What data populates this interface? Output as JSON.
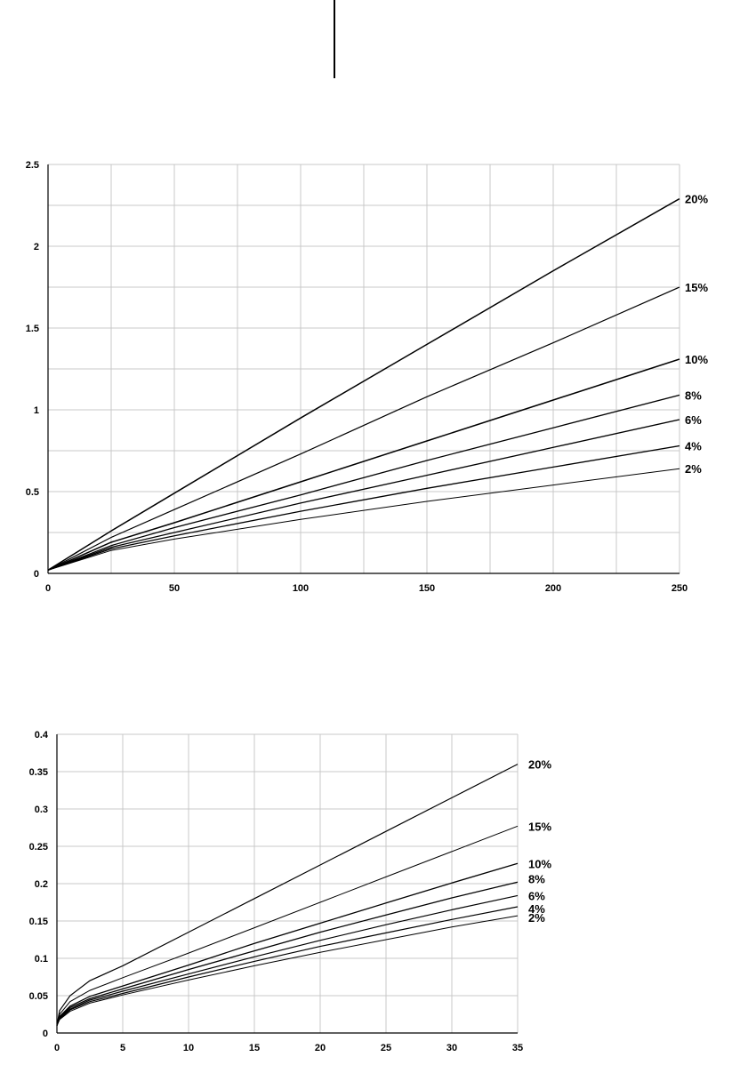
{
  "chart_data": [
    {
      "type": "line",
      "title": "",
      "xlabel": "",
      "ylabel": "",
      "xlim": [
        0,
        250
      ],
      "ylim": [
        0,
        2.5
      ],
      "grid": true,
      "legend": "inline labels at right end of each line",
      "x_ticks": [
        "0",
        "50",
        "100",
        "150",
        "200",
        "250"
      ],
      "y_ticks": [
        "0",
        "0.5",
        "1",
        "1.5",
        "2",
        "2.5"
      ],
      "series": [
        {
          "name": "20%",
          "x": [
            0,
            25,
            50,
            100,
            150,
            200,
            250
          ],
          "values": [
            0.02,
            0.26,
            0.49,
            0.95,
            1.4,
            1.85,
            2.29
          ]
        },
        {
          "name": "15%",
          "x": [
            0,
            25,
            50,
            100,
            150,
            200,
            250
          ],
          "values": [
            0.02,
            0.22,
            0.39,
            0.73,
            1.08,
            1.41,
            1.75
          ]
        },
        {
          "name": "10%",
          "x": [
            0,
            25,
            50,
            100,
            150,
            200,
            250
          ],
          "values": [
            0.02,
            0.19,
            0.31,
            0.56,
            0.81,
            1.06,
            1.31
          ]
        },
        {
          "name": "8%",
          "x": [
            0,
            25,
            50,
            100,
            150,
            200,
            250
          ],
          "values": [
            0.02,
            0.17,
            0.28,
            0.48,
            0.69,
            0.89,
            1.09
          ]
        },
        {
          "name": "6%",
          "x": [
            0,
            25,
            50,
            100,
            150,
            200,
            250
          ],
          "values": [
            0.02,
            0.16,
            0.25,
            0.43,
            0.6,
            0.77,
            0.94
          ]
        },
        {
          "name": "4%",
          "x": [
            0,
            25,
            50,
            100,
            150,
            200,
            250
          ],
          "values": [
            0.02,
            0.15,
            0.23,
            0.38,
            0.52,
            0.65,
            0.78
          ]
        },
        {
          "name": "2%",
          "x": [
            0,
            25,
            50,
            100,
            150,
            200,
            250
          ],
          "values": [
            0.02,
            0.14,
            0.21,
            0.33,
            0.44,
            0.54,
            0.64
          ]
        }
      ]
    },
    {
      "type": "line",
      "title": "",
      "xlabel": "",
      "ylabel": "",
      "xlim": [
        0,
        35
      ],
      "ylim": [
        0,
        0.4
      ],
      "grid": true,
      "legend": "inline labels at right end of each line",
      "x_ticks": [
        "0",
        "5",
        "10",
        "15",
        "20",
        "25",
        "30",
        "35"
      ],
      "y_ticks": [
        "0",
        "0.05",
        "0.1",
        "0.15",
        "0.2",
        "0.25",
        "0.3",
        "0.35",
        "0.4"
      ],
      "series": [
        {
          "name": "20%",
          "x": [
            0,
            0.2,
            1,
            2.5,
            5,
            10,
            15,
            20,
            25,
            30,
            35
          ],
          "values": [
            0.01,
            0.03,
            0.05,
            0.07,
            0.09,
            0.135,
            0.18,
            0.225,
            0.27,
            0.315,
            0.36
          ]
        },
        {
          "name": "15%",
          "x": [
            0,
            0.2,
            1,
            2.5,
            5,
            10,
            15,
            20,
            25,
            30,
            35
          ],
          "values": [
            0.01,
            0.025,
            0.042,
            0.057,
            0.074,
            0.107,
            0.141,
            0.175,
            0.209,
            0.243,
            0.277
          ]
        },
        {
          "name": "10%",
          "x": [
            0,
            0.2,
            1,
            2.5,
            5,
            10,
            15,
            20,
            25,
            30,
            35
          ],
          "values": [
            0.01,
            0.022,
            0.036,
            0.049,
            0.063,
            0.091,
            0.12,
            0.147,
            0.174,
            0.201,
            0.227
          ]
        },
        {
          "name": "8%",
          "x": [
            0,
            0.2,
            1,
            2.5,
            5,
            10,
            15,
            20,
            25,
            30,
            35
          ],
          "values": [
            0.01,
            0.021,
            0.034,
            0.046,
            0.059,
            0.085,
            0.11,
            0.135,
            0.158,
            0.181,
            0.202
          ]
        },
        {
          "name": "6%",
          "x": [
            0,
            0.2,
            1,
            2.5,
            5,
            10,
            15,
            20,
            25,
            30,
            35
          ],
          "values": [
            0.01,
            0.02,
            0.032,
            0.044,
            0.056,
            0.079,
            0.102,
            0.124,
            0.145,
            0.165,
            0.184
          ]
        },
        {
          "name": "4%",
          "x": [
            0,
            0.2,
            1,
            2.5,
            5,
            10,
            15,
            20,
            25,
            30,
            35
          ],
          "values": [
            0.01,
            0.019,
            0.031,
            0.042,
            0.053,
            0.075,
            0.096,
            0.116,
            0.134,
            0.152,
            0.169
          ]
        },
        {
          "name": "2%",
          "x": [
            0,
            0.2,
            1,
            2.5,
            5,
            10,
            15,
            20,
            25,
            30,
            35
          ],
          "values": [
            0.01,
            0.018,
            0.029,
            0.04,
            0.051,
            0.071,
            0.09,
            0.108,
            0.125,
            0.142,
            0.157
          ]
        }
      ]
    }
  ]
}
